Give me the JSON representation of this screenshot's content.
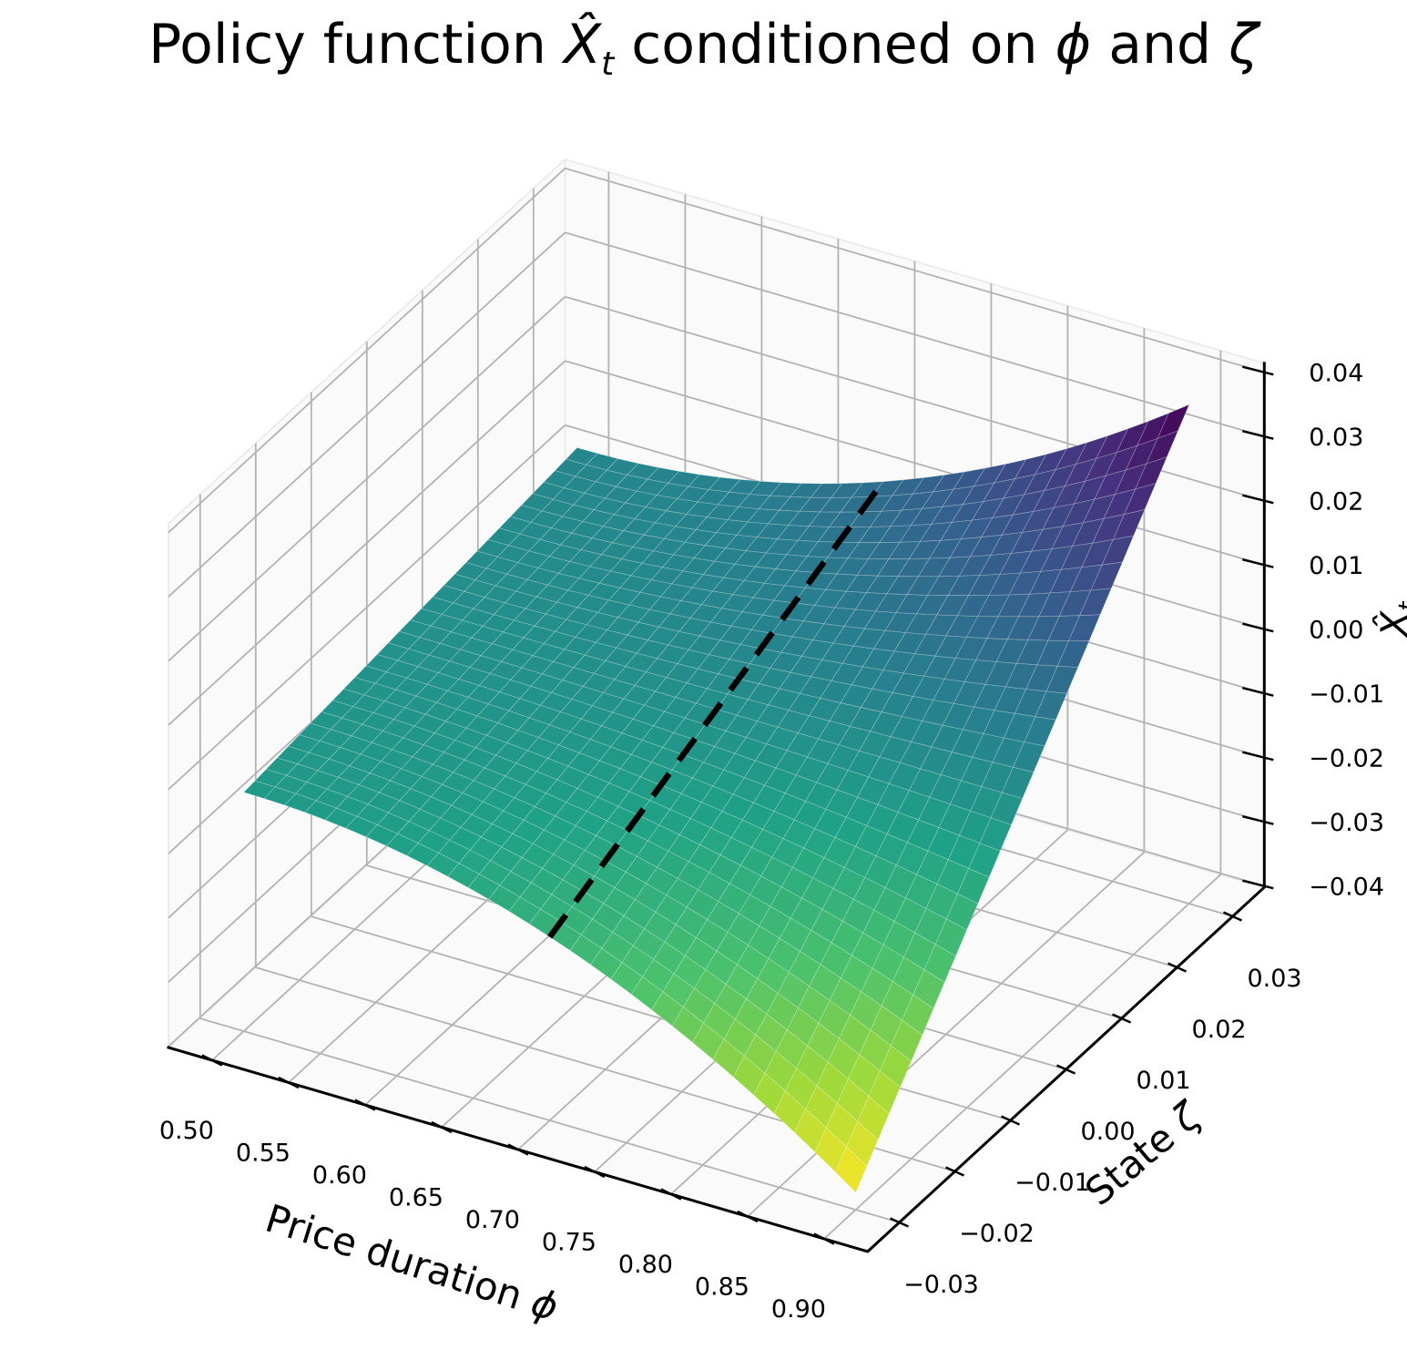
{
  "title_segments": {
    "p1": "Policy function ",
    "v1": "X̂",
    "v1_sub": "t",
    "p2": " conditioned on ",
    "v2": "ϕ",
    "p3": " and ",
    "v3": "ζ"
  },
  "chart_data": {
    "type": "surface-3d",
    "title": "Policy function X̂_t conditioned on ϕ and ζ",
    "x_axis": {
      "label_text": "Price duration ",
      "label_symbol": "ϕ",
      "values": [
        0.5,
        0.55,
        0.6,
        0.65,
        0.7,
        0.75,
        0.8,
        0.85,
        0.9
      ],
      "tick_labels": [
        "0.50",
        "0.55",
        "0.60",
        "0.65",
        "0.70",
        "0.75",
        "0.80",
        "0.85",
        "0.90"
      ],
      "lim": [
        0.4715,
        0.9285
      ],
      "data_range": [
        0.5,
        0.9
      ]
    },
    "y_axis": {
      "label_text": "State ",
      "label_symbol": "ζ",
      "values": [
        -0.03,
        -0.02,
        -0.01,
        0.0,
        0.01,
        0.02,
        0.03
      ],
      "tick_labels": [
        "−0.03",
        "−0.02",
        "−0.01",
        "0.00",
        "0.01",
        "0.02",
        "0.03"
      ],
      "lim": [
        -0.0357,
        0.0357
      ],
      "data_range": [
        -0.03,
        0.03
      ]
    },
    "z_axis": {
      "label_symbol": "X̂",
      "label_sub": "t",
      "label_clipped_at_edge": true,
      "values": [
        -0.04,
        -0.03,
        -0.02,
        -0.01,
        0.0,
        0.01,
        0.02,
        0.03,
        0.04
      ],
      "tick_labels": [
        "−0.04",
        "−0.03",
        "−0.02",
        "−0.01",
        "0.00",
        "0.01",
        "0.02",
        "0.03",
        "0.04"
      ],
      "lim": [
        -0.0402,
        0.0414
      ]
    },
    "surface": {
      "formula": "z = ζ · (a + b·(ϕ − c)²)",
      "a": 0.1,
      "b": 7.19,
      "c": 0.5,
      "grid_n": 30,
      "sample_grid": {
        "phi": [
          0.5,
          0.55,
          0.6,
          0.65,
          0.7,
          0.75,
          0.8,
          0.85,
          0.9
        ],
        "zeta": [
          -0.03,
          -0.02,
          -0.01,
          0.0,
          0.01,
          0.02,
          0.03
        ],
        "z": [
          [
            -0.003,
            -0.0035,
            -0.0052,
            -0.0079,
            -0.0116,
            -0.0165,
            -0.0224,
            -0.0294,
            -0.0375
          ],
          [
            -0.002,
            -0.0024,
            -0.0034,
            -0.0052,
            -0.0078,
            -0.011,
            -0.0149,
            -0.0196,
            -0.025
          ],
          [
            -0.001,
            -0.0012,
            -0.0017,
            -0.0026,
            -0.0039,
            -0.0055,
            -0.0075,
            -0.0098,
            -0.0125
          ],
          [
            0.0,
            0.0,
            0.0,
            0.0,
            0.0,
            0.0,
            0.0,
            0.0,
            0.0
          ],
          [
            0.001,
            0.0012,
            0.0017,
            0.0026,
            0.0039,
            0.0055,
            0.0075,
            0.0098,
            0.0125
          ],
          [
            0.002,
            0.0024,
            0.0034,
            0.0052,
            0.0078,
            0.011,
            0.0149,
            0.0196,
            0.025
          ],
          [
            0.003,
            0.0035,
            0.0052,
            0.0079,
            0.0116,
            0.0165,
            0.0224,
            0.0294,
            0.0375
          ]
        ]
      }
    },
    "slice_line": {
      "phi": 0.7,
      "style": "dashed",
      "color": "#000000",
      "width": 6.5,
      "dash": "30 18"
    },
    "colormap": {
      "name": "viridis (reversed along z)",
      "stops": [
        "#440154",
        "#46327e",
        "#365c8d",
        "#277f8e",
        "#1fa187",
        "#4ac16d",
        "#a0da39",
        "#fde725"
      ],
      "color_zmin": -0.0375,
      "color_zmax": 0.0375,
      "reversed_by_z": true,
      "mesh_line": "rgba(255,255,255,0.25)"
    },
    "appearance": {
      "grid_color": "#b3b3b3",
      "pane_color": "#fafafa",
      "pane_edge_color": "#ececec",
      "spine_color": "#000000",
      "tick_label_color": "#000000",
      "background": "#ffffff",
      "legend": "none",
      "grid": "on"
    }
  }
}
